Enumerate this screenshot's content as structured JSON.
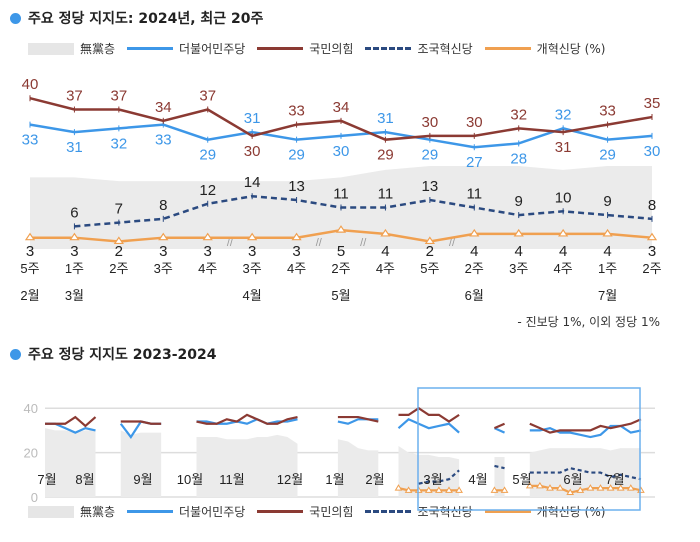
{
  "title1": "주요 정당 지지도: 2024년, 최근 20주",
  "title2": "주요 정당 지지도 2023-2024",
  "legend": [
    {
      "name": "無黨층",
      "color": "#e6e6e6",
      "style": "area"
    },
    {
      "name": "더불어민주당",
      "color": "#3d97e8",
      "style": "solid"
    },
    {
      "name": "국민의힘",
      "color": "#8b3a33",
      "style": "solid"
    },
    {
      "name": "조국혁신당",
      "color": "#2b4a80",
      "style": "dashed"
    },
    {
      "name": "개혁신당 (%)",
      "color": "#f0a050",
      "style": "triangle"
    }
  ],
  "note": "- 진보당 1%, 이외 정당 1%",
  "chart_data": [
    {
      "type": "line",
      "categories": [
        "5주",
        "1주",
        "2주",
        "3주",
        "4주",
        "3주",
        "4주",
        "2주",
        "4주",
        "5주",
        "2주",
        "3주",
        "4주",
        "1주",
        "2주"
      ],
      "months": [
        "2월",
        "3월",
        "",
        "",
        "",
        "4월",
        "",
        "5월",
        "",
        "",
        "6월",
        "",
        "",
        "7월",
        ""
      ],
      "series": [
        {
          "name": "無黨층",
          "type": "area",
          "values": [
            19,
            19,
            18,
            18,
            18,
            18,
            18,
            19,
            21,
            22,
            22,
            22,
            21,
            22,
            22
          ]
        },
        {
          "name": "더불어민주당",
          "values": [
            33,
            31,
            32,
            33,
            29,
            31,
            29,
            30,
            31,
            29,
            27,
            28,
            32,
            29,
            30
          ]
        },
        {
          "name": "국민의힘",
          "values": [
            40,
            37,
            37,
            34,
            37,
            30,
            33,
            34,
            29,
            30,
            30,
            32,
            31,
            33,
            35
          ]
        },
        {
          "name": "조국혁신당",
          "values": [
            null,
            6,
            7,
            8,
            12,
            14,
            13,
            11,
            11,
            13,
            11,
            9,
            10,
            9,
            8
          ]
        },
        {
          "name": "개혁신당",
          "values": [
            3,
            3,
            2,
            3,
            3,
            3,
            3,
            5,
            4,
            2,
            4,
            4,
            4,
            4,
            3
          ]
        }
      ],
      "ylim": [
        0,
        42
      ]
    },
    {
      "type": "line",
      "ylim": [
        0,
        40
      ],
      "yticks": [
        0,
        20,
        40
      ],
      "month_labels": [
        "7월",
        "8월",
        "9월",
        "10월",
        "11월",
        "12월",
        "1월",
        "2월",
        "3월",
        "4월",
        "5월",
        "6월",
        "7월"
      ],
      "segments": [
        {
          "x0": 0,
          "dem": [
            33,
            33,
            31,
            29,
            31,
            30
          ],
          "ppp": [
            33,
            33,
            33,
            36,
            32,
            36
          ],
          "ind": [
            31,
            30,
            30,
            29,
            30,
            30
          ]
        },
        {
          "x0": 7.5,
          "dem": [
            33,
            27,
            34,
            33,
            33
          ],
          "ppp": [
            34,
            34,
            34,
            33,
            33
          ],
          "ind": [
            30,
            28,
            29,
            29,
            29
          ]
        },
        {
          "x0": 15,
          "dem": [
            34,
            34,
            33,
            33,
            34,
            33,
            35,
            33,
            34,
            34,
            35
          ],
          "ppp": [
            34,
            33,
            33,
            35,
            34,
            37,
            35,
            33,
            33,
            35,
            36
          ],
          "ind": [
            27,
            27,
            27,
            26,
            26,
            26,
            27,
            27,
            28,
            27,
            24
          ]
        },
        {
          "x0": 29,
          "dem": [
            34,
            33,
            35,
            35,
            35
          ],
          "ppp": [
            36,
            36,
            36,
            35,
            34
          ],
          "ind": [
            26,
            25,
            22,
            21,
            21
          ]
        },
        {
          "x0": 35,
          "dem": [
            31,
            35,
            33,
            31,
            32,
            33,
            29
          ],
          "ppp": [
            37,
            37,
            40,
            37,
            37,
            34,
            37
          ],
          "ind": [
            23,
            20,
            19,
            19,
            18,
            18,
            17
          ],
          "cho": [
            null,
            null,
            6,
            7,
            7,
            8,
            12
          ],
          "ref": [
            4,
            3,
            3,
            3,
            3,
            3,
            3
          ]
        },
        {
          "x0": 44.5,
          "dem": [
            31,
            29
          ],
          "ppp": [
            31,
            33
          ],
          "ind": [
            18,
            18
          ],
          "cho": [
            14,
            13
          ],
          "ref": [
            3,
            3
          ]
        },
        {
          "x0": 48,
          "dem": [
            30,
            30,
            31,
            29,
            29,
            28,
            27,
            28,
            32,
            32,
            29,
            30
          ],
          "ppp": [
            33,
            31,
            29,
            30,
            30,
            30,
            30,
            32,
            31,
            32,
            33,
            35
          ],
          "ind": [
            20,
            21,
            22,
            22,
            22,
            22,
            22,
            22,
            21,
            22,
            22,
            22
          ],
          "cho": [
            11,
            11,
            11,
            11,
            13,
            12,
            11,
            11,
            9,
            10,
            9,
            8
          ],
          "ref": [
            5,
            5,
            4,
            4,
            2,
            3,
            4,
            4,
            4,
            4,
            4,
            3
          ]
        }
      ]
    }
  ]
}
